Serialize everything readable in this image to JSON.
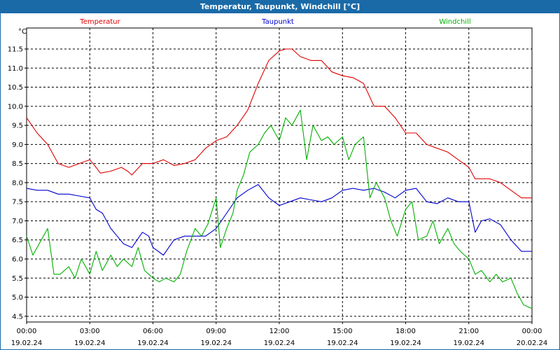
{
  "window": {
    "title": "Temperatur, Taupunkt, Windchill [°C]"
  },
  "chart_data": {
    "type": "line",
    "title": "Temperatur, Taupunkt, Windchill [°C]",
    "ylabel": "°C",
    "ylim": [
      4.35,
      12.05
    ],
    "yticks": [
      4.5,
      5.0,
      5.5,
      6.0,
      6.5,
      7.0,
      7.5,
      8.0,
      8.5,
      9.0,
      9.5,
      10.0,
      10.5,
      11.0,
      11.5
    ],
    "ytick_labels": [
      "4.5",
      "5.0",
      "5.5",
      "6.0",
      "6.5",
      "7.0",
      "7.5",
      "8.0",
      "8.5",
      "9.0",
      "9.5",
      "10.0",
      "10.5",
      "11.0",
      "11.5"
    ],
    "xlim": [
      0,
      24
    ],
    "xticks": [
      {
        "h": 0,
        "time": "00:00",
        "date": "19.02.24"
      },
      {
        "h": 3,
        "time": "03:00",
        "date": "19.02.24"
      },
      {
        "h": 6,
        "time": "06:00",
        "date": "19.02.24"
      },
      {
        "h": 9,
        "time": "09:00",
        "date": "19.02.24"
      },
      {
        "h": 12,
        "time": "12:00",
        "date": "19.02.24"
      },
      {
        "h": 15,
        "time": "15:00",
        "date": "19.02.24"
      },
      {
        "h": 18,
        "time": "18:00",
        "date": "19.02.24"
      },
      {
        "h": 21,
        "time": "21:00",
        "date": "19.02.24"
      },
      {
        "h": 24,
        "time": "00:00",
        "date": "20.02.24"
      }
    ],
    "grid": true,
    "legend_position": "top",
    "series": [
      {
        "name": "Temperatur",
        "color": "#e00000",
        "x": [
          0,
          0.5,
          1,
          1.5,
          2,
          2.5,
          3,
          3.3,
          3.5,
          4,
          4.5,
          4.8,
          5,
          5.5,
          6,
          6.5,
          7,
          7.5,
          8,
          8.5,
          9,
          9.5,
          10,
          10.5,
          11,
          11.5,
          12,
          12.3,
          12.6,
          13,
          13.5,
          14,
          14.5,
          15,
          15.5,
          16,
          16.5,
          17,
          17.5,
          18,
          18.5,
          19,
          19.5,
          20,
          20.5,
          21,
          21.3,
          21.6,
          22,
          22.5,
          23,
          23.5,
          24
        ],
        "y": [
          9.7,
          9.3,
          9.0,
          8.5,
          8.4,
          8.5,
          8.6,
          8.4,
          8.25,
          8.3,
          8.4,
          8.3,
          8.2,
          8.5,
          8.5,
          8.6,
          8.45,
          8.5,
          8.6,
          8.9,
          9.1,
          9.2,
          9.5,
          9.9,
          10.6,
          11.2,
          11.45,
          11.5,
          11.5,
          11.3,
          11.2,
          11.2,
          10.9,
          10.8,
          10.75,
          10.6,
          10.0,
          10.0,
          9.7,
          9.3,
          9.3,
          9.0,
          8.9,
          8.8,
          8.6,
          8.4,
          8.1,
          8.1,
          8.1,
          8.0,
          7.8,
          7.6,
          7.6
        ]
      },
      {
        "name": "Taupunkt",
        "color": "#0000d0",
        "x": [
          0,
          0.5,
          1,
          1.5,
          2,
          2.5,
          3,
          3.3,
          3.6,
          4,
          4.3,
          4.6,
          5,
          5.5,
          5.8,
          6,
          6.5,
          7,
          7.5,
          8,
          8.5,
          9,
          9.5,
          10,
          10.5,
          11,
          11.5,
          12,
          12.5,
          13,
          13.5,
          14,
          14.5,
          15,
          15.5,
          16,
          16.5,
          17,
          17.5,
          18,
          18.5,
          19,
          19.5,
          20,
          20.5,
          21,
          21.3,
          21.6,
          22,
          22.5,
          23,
          23.5,
          24
        ],
        "y": [
          7.85,
          7.8,
          7.8,
          7.7,
          7.7,
          7.65,
          7.6,
          7.3,
          7.2,
          6.8,
          6.6,
          6.4,
          6.3,
          6.7,
          6.6,
          6.3,
          6.1,
          6.5,
          6.6,
          6.6,
          6.6,
          6.8,
          7.2,
          7.6,
          7.8,
          7.95,
          7.6,
          7.4,
          7.5,
          7.6,
          7.55,
          7.5,
          7.6,
          7.8,
          7.85,
          7.8,
          7.85,
          7.75,
          7.6,
          7.8,
          7.85,
          7.5,
          7.45,
          7.6,
          7.5,
          7.5,
          6.7,
          7.0,
          7.05,
          6.9,
          6.5,
          6.2,
          6.2
        ]
      },
      {
        "name": "Windchill",
        "color": "#00b000",
        "x": [
          0,
          0.3,
          0.6,
          1,
          1.3,
          1.6,
          2,
          2.3,
          2.6,
          3,
          3.3,
          3.6,
          4,
          4.3,
          4.6,
          5,
          5.3,
          5.6,
          6,
          6.3,
          6.6,
          7,
          7.3,
          7.6,
          8,
          8.3,
          8.6,
          9,
          9.2,
          9.5,
          9.8,
          10,
          10.3,
          10.6,
          11,
          11.3,
          11.6,
          12,
          12.3,
          12.6,
          13,
          13.3,
          13.6,
          14,
          14.3,
          14.6,
          15,
          15.3,
          15.6,
          16,
          16.3,
          16.6,
          17,
          17.3,
          17.6,
          18,
          18.3,
          18.6,
          19,
          19.3,
          19.6,
          20,
          20.3,
          20.6,
          21,
          21.3,
          21.6,
          22,
          22.3,
          22.6,
          23,
          23.3,
          23.6,
          24
        ],
        "y": [
          6.6,
          6.1,
          6.4,
          6.8,
          5.6,
          5.6,
          5.8,
          5.5,
          6.0,
          5.6,
          6.2,
          5.7,
          6.1,
          5.8,
          6.0,
          5.8,
          6.3,
          5.7,
          5.5,
          5.4,
          5.5,
          5.4,
          5.6,
          6.2,
          6.8,
          6.6,
          6.9,
          7.6,
          6.3,
          6.8,
          7.2,
          7.8,
          8.2,
          8.8,
          9.0,
          9.3,
          9.5,
          9.1,
          9.7,
          9.5,
          9.9,
          8.6,
          9.5,
          9.1,
          9.2,
          9.0,
          9.2,
          8.6,
          9.0,
          9.2,
          7.6,
          8.0,
          7.6,
          7.0,
          6.6,
          7.3,
          7.5,
          6.5,
          6.6,
          7.0,
          6.4,
          6.8,
          6.4,
          6.2,
          6.0,
          5.6,
          5.7,
          5.4,
          5.6,
          5.4,
          5.5,
          5.1,
          4.8,
          4.7
        ]
      }
    ]
  }
}
